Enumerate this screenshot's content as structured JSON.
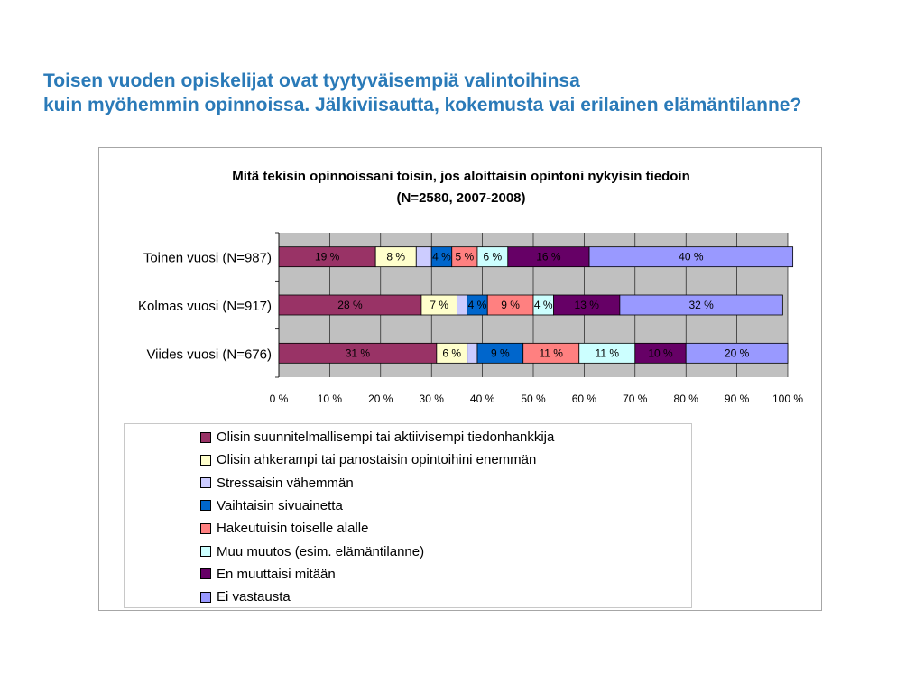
{
  "slide": {
    "title_line1": "Toisen vuoden opiskelijat ovat tyytyväisempiä valintoihinsa",
    "title_line2": "kuin myöhemmin opinnoissa. Jälkiviisautta, kokemusta vai erilainen elämäntilanne?"
  },
  "chart_data": {
    "type": "bar",
    "orientation": "horizontal",
    "stacked": "percent",
    "title_line1": "Mitä tekisin opinnoissani toisin, jos aloittaisin opintoni nykyisin tiedoin",
    "title_line2": "(N=2580, 2007-2008)",
    "categories": [
      "Toinen vuosi (N=987)",
      "Kolmas vuosi (N=917)",
      "Viides vuosi (N=676)"
    ],
    "series": [
      {
        "name": "Olisin suunnitelmallisempi tai aktiivisempi tiedonhankkija",
        "color": "#993366",
        "values": [
          19,
          28,
          31
        ],
        "labels": [
          "19 %",
          "28 %",
          "31 %"
        ]
      },
      {
        "name": "Olisin ahkerampi tai panostaisin opintoihini enemmän",
        "color": "#ffffcc",
        "values": [
          8,
          7,
          6
        ],
        "labels": [
          "8 %",
          "7 %",
          "6 %"
        ]
      },
      {
        "name": "Stressaisin vähemmän",
        "color": "#ccccff",
        "values": [
          3,
          2,
          2
        ],
        "labels": [
          "",
          "",
          ""
        ]
      },
      {
        "name": "Vaihtaisin sivuainetta",
        "color": "#0066cc",
        "values": [
          4,
          4,
          9
        ],
        "labels": [
          "4 %",
          "4 %",
          "9 %"
        ]
      },
      {
        "name": "Hakeutuisin toiselle alalle",
        "color": "#ff8080",
        "values": [
          5,
          9,
          11
        ],
        "labels": [
          "5 %",
          "9 %",
          "11 %"
        ]
      },
      {
        "name": "Muu muutos (esim. elämäntilanne)",
        "color": "#ccffff",
        "values": [
          6,
          4,
          11
        ],
        "labels": [
          "6 %",
          "4 %",
          "11 %"
        ]
      },
      {
        "name": "En muuttaisi mitään",
        "color": "#660066",
        "values": [
          16,
          13,
          10
        ],
        "labels": [
          "16 %",
          "13 %",
          "10 %"
        ]
      },
      {
        "name": "Ei vastausta",
        "color": "#9999ff",
        "values": [
          40,
          32,
          20
        ],
        "labels": [
          "40 %",
          "32 %",
          "20 %"
        ]
      }
    ],
    "xlim": [
      0,
      100
    ],
    "x_ticks": [
      "0 %",
      "10 %",
      "20 %",
      "30 %",
      "40 %",
      "50 %",
      "60 %",
      "70 %",
      "80 %",
      "90 %",
      "100 %"
    ],
    "grid": true,
    "plot_background": "#c0c0c0",
    "legend_position": "bottom"
  }
}
